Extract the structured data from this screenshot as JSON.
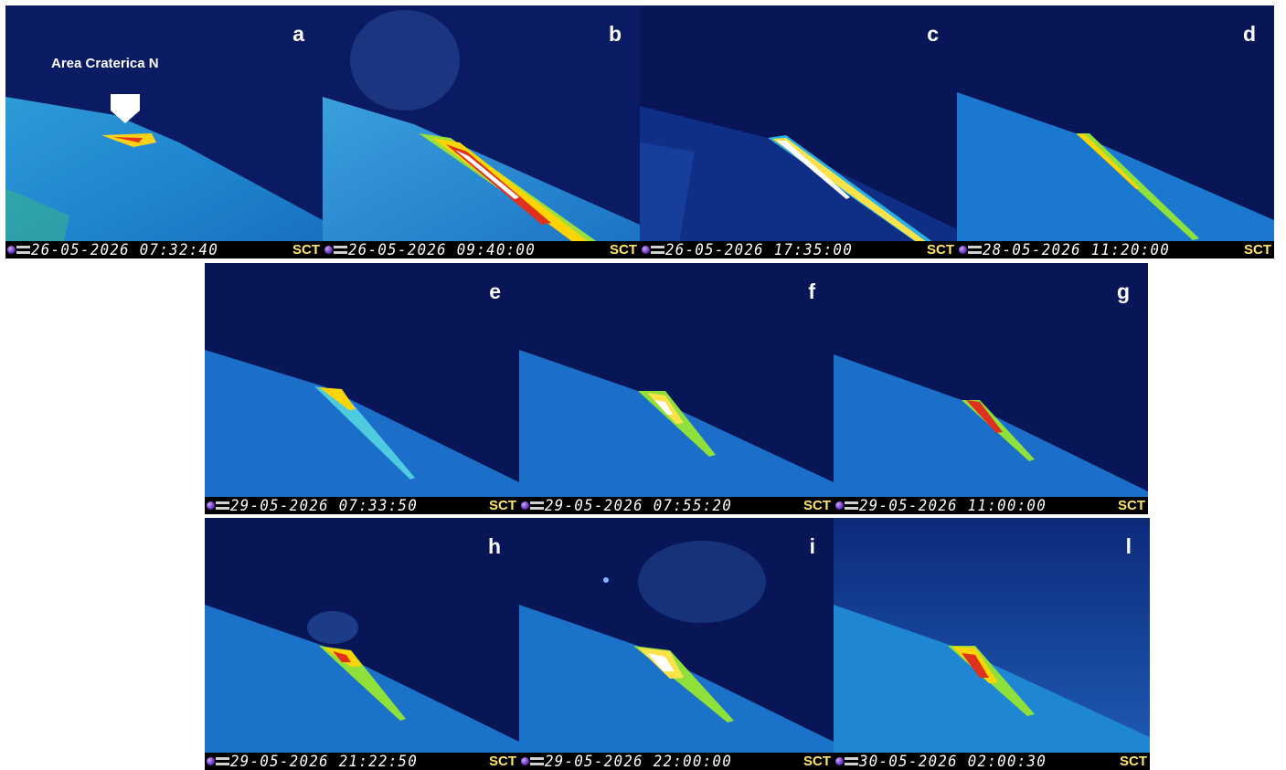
{
  "annotation": {
    "label": "Area Craterica N"
  },
  "panels": [
    {
      "letter": "a",
      "timestamp": "26-05-2026 07:32:40",
      "station": "SCT"
    },
    {
      "letter": "b",
      "timestamp": "26-05-2026 09:40:00",
      "station": "SCT"
    },
    {
      "letter": "c",
      "timestamp": "26-05-2026 17:35:00",
      "station": "SCT"
    },
    {
      "letter": "d",
      "timestamp": "28-05-2026 11:20:00",
      "station": "SCT"
    },
    {
      "letter": "e",
      "timestamp": "29-05-2026 07:33:50",
      "station": "SCT"
    },
    {
      "letter": "f",
      "timestamp": "29-05-2026 07:55:20",
      "station": "SCT"
    },
    {
      "letter": "g",
      "timestamp": "29-05-2026 11:00:00",
      "station": "SCT"
    },
    {
      "letter": "h",
      "timestamp": "29-05-2026 21:22:50",
      "station": "SCT"
    },
    {
      "letter": "i",
      "timestamp": "29-05-2026 22:00:00",
      "station": "SCT"
    },
    {
      "letter": "l",
      "timestamp": "30-05-2026 02:00:30",
      "station": "SCT"
    }
  ],
  "colors": {
    "sky": "#07124f",
    "slope": "#1e7fd6",
    "hot": "#ffffff",
    "warm": "#ffd400",
    "lava": "#e0301e"
  }
}
